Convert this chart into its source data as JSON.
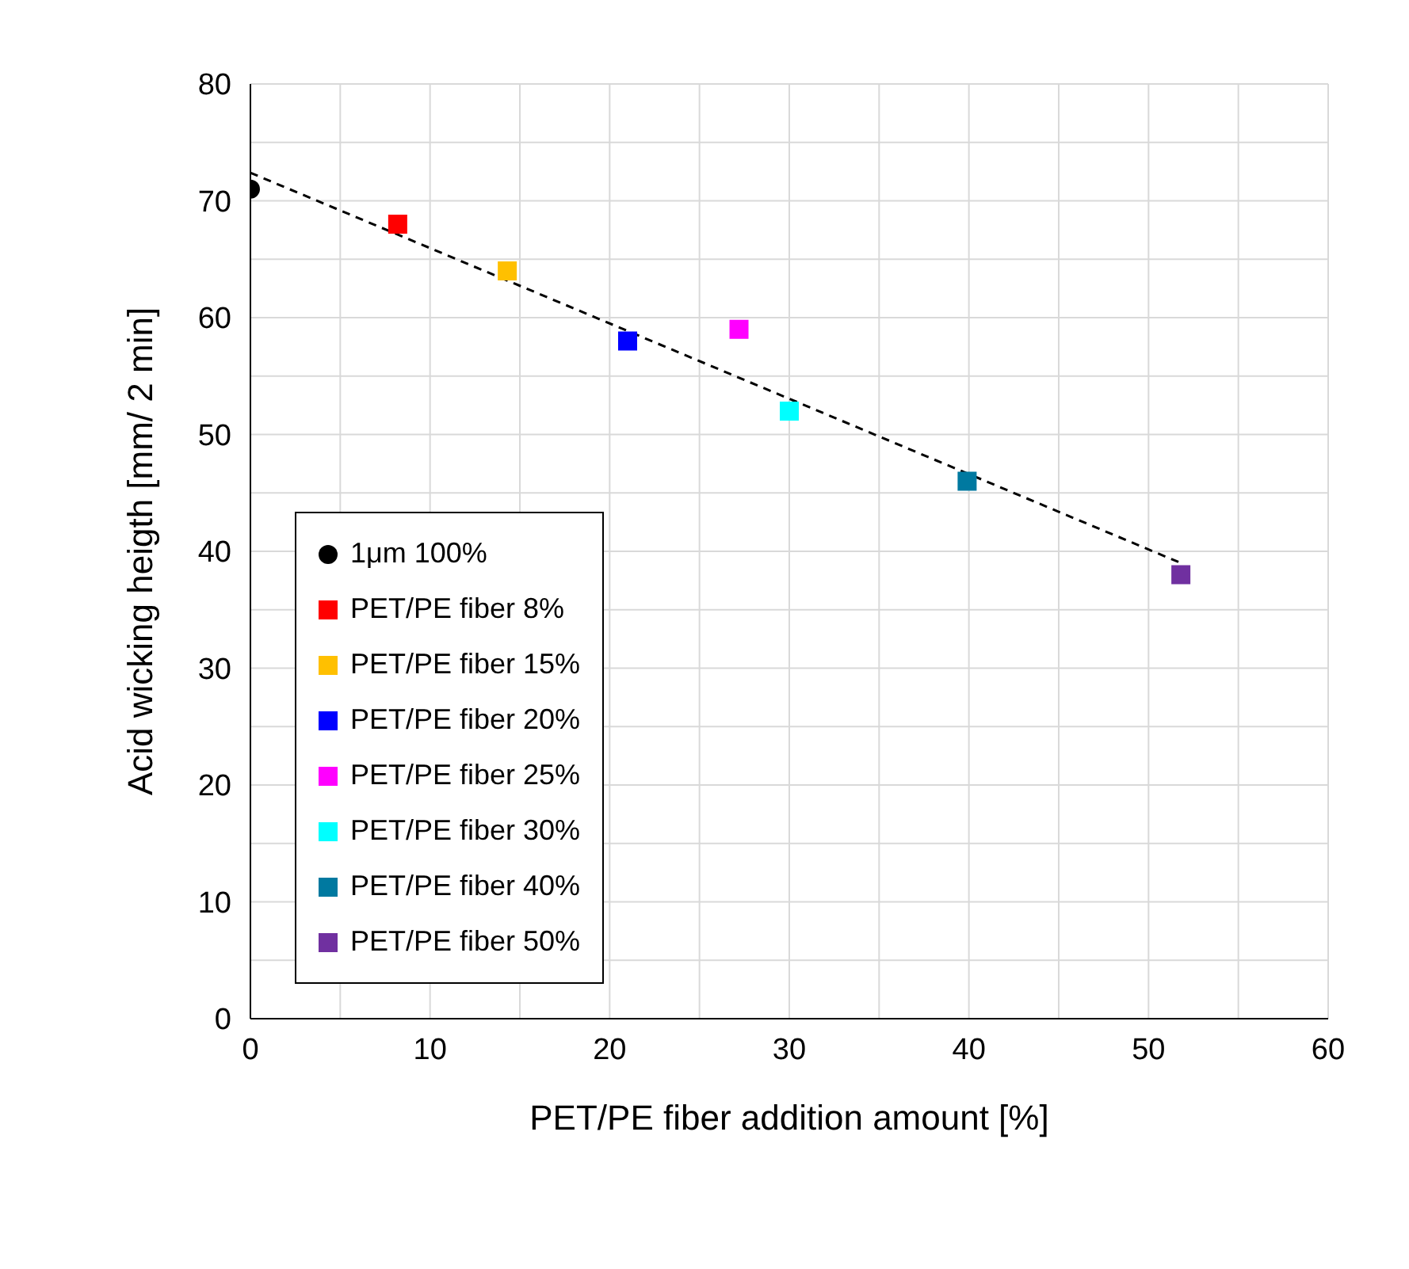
{
  "chart_data": {
    "type": "scatter",
    "xlabel": "PET/PE fiber addition amount [%]",
    "ylabel": "Acid wicking heigth [mm/ 2 min]",
    "xlim": [
      0,
      60
    ],
    "ylim": [
      0,
      80
    ],
    "xticks": [
      0,
      {
        "value": 5,
        "label": null
      },
      10,
      {
        "value": 15,
        "label": null
      },
      20,
      {
        "value": 25,
        "label": null
      },
      30,
      {
        "value": 35,
        "label": null
      },
      40,
      {
        "value": 45,
        "label": null
      },
      50,
      {
        "value": 55,
        "label": null
      },
      60
    ],
    "yticks": [
      0,
      {
        "value": 5,
        "label": null
      },
      10,
      {
        "value": 15,
        "label": null
      },
      20,
      {
        "value": 25,
        "label": null
      },
      30,
      {
        "value": 35,
        "label": null
      },
      40,
      {
        "value": 45,
        "label": null
      },
      50,
      {
        "value": 55,
        "label": null
      },
      60,
      {
        "value": 65,
        "label": null
      },
      70,
      {
        "value": 75,
        "label": null
      },
      80
    ],
    "grid": true,
    "legend": "bottom left",
    "series": [
      {
        "name": "1μm 100%",
        "color": "#000000",
        "marker": "circle",
        "x": [
          0
        ],
        "values": [
          71
        ]
      },
      {
        "name": "PET/PE fiber 8%",
        "color": "#ff0000",
        "marker": "square",
        "x": [
          8.2
        ],
        "values": [
          68
        ]
      },
      {
        "name": "PET/PE fiber 15%",
        "color": "#ffc000",
        "marker": "square",
        "x": [
          14.3
        ],
        "values": [
          64
        ]
      },
      {
        "name": "PET/PE fiber 20%",
        "color": "#0000ff",
        "marker": "square",
        "x": [
          21
        ],
        "values": [
          58
        ]
      },
      {
        "name": "PET/PE fiber 25%",
        "color": "#ff00ff",
        "marker": "square",
        "x": [
          27.2
        ],
        "values": [
          59
        ]
      },
      {
        "name": "PET/PE fiber 30%",
        "color": "#00ffff",
        "marker": "square",
        "x": [
          30
        ],
        "values": [
          52
        ]
      },
      {
        "name": "PET/PE fiber 40%",
        "color": "#0079a0",
        "marker": "square",
        "x": [
          39.9
        ],
        "values": [
          46
        ]
      },
      {
        "name": "PET/PE fiber 50%",
        "color": "#7030a0",
        "marker": "square",
        "x": [
          51.8
        ],
        "values": [
          38
        ]
      },
      {
        "type": "line",
        "color": "#000000",
        "line_style": "dashed",
        "marker": "none",
        "x": [
          0,
          51.8
        ],
        "values": [
          72.4,
          39
        ]
      }
    ]
  }
}
